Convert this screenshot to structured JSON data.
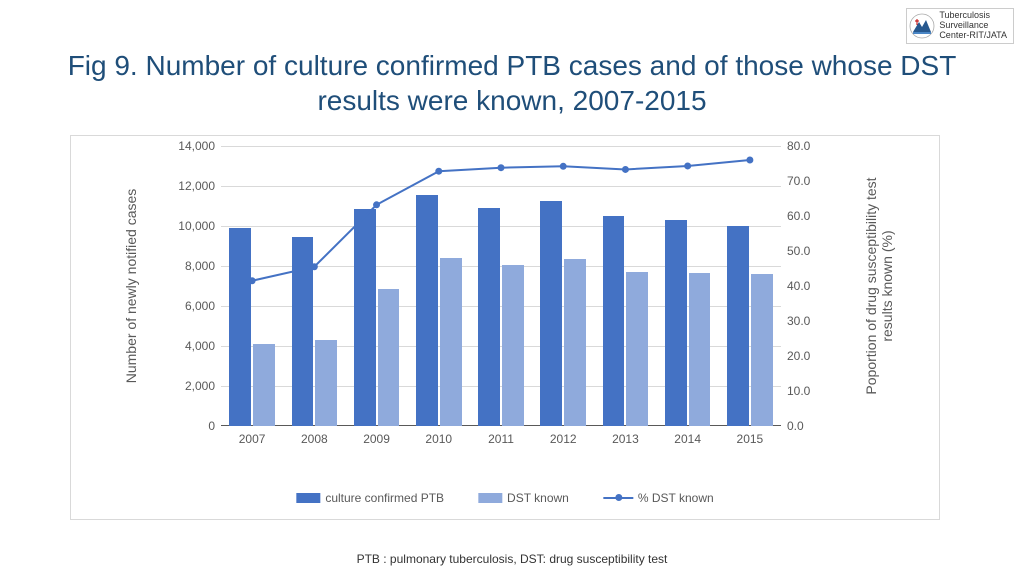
{
  "logo": {
    "line1": "Tuberculosis",
    "line2": "Surveillance",
    "line3": "Center-RIT/JATA"
  },
  "title": "Fig 9. Number of culture confirmed PTB cases and of those whose DST results were known, 2007-2015",
  "chart": {
    "type": "bar+line",
    "background_color": "#ffffff",
    "border_color": "#d9d9d9",
    "grid_color": "#d9d9d9",
    "categories": [
      "2007",
      "2008",
      "2009",
      "2010",
      "2011",
      "2012",
      "2013",
      "2014",
      "2015"
    ],
    "y_left": {
      "title": "Number of newly notified cases",
      "min": 0,
      "max": 14000,
      "step": 2000,
      "labels": [
        "0",
        "2,000",
        "4,000",
        "6,000",
        "8,000",
        "10,000",
        "12,000",
        "14,000"
      ],
      "fontsize": 12,
      "color": "#595959"
    },
    "y_right": {
      "title": "Poportion of drug susceptibility test\nresults known (%)",
      "min": 0,
      "max": 80,
      "step": 10,
      "labels": [
        "0.0",
        "10.0",
        "20.0",
        "30.0",
        "40.0",
        "50.0",
        "60.0",
        "70.0",
        "80.0"
      ],
      "fontsize": 12,
      "color": "#595959"
    },
    "series": {
      "culture_confirmed_ptb": {
        "label": "culture confirmed PTB",
        "values": [
          9900,
          9450,
          10850,
          11550,
          10900,
          11250,
          10500,
          10300,
          10000
        ],
        "color": "#4472c4",
        "bar_width": 0.35
      },
      "dst_known": {
        "label": "DST known",
        "values": [
          4100,
          4300,
          6850,
          8400,
          8050,
          8350,
          7700,
          7650,
          7600
        ],
        "color": "#8faadc",
        "bar_width": 0.35
      },
      "pct_dst_known": {
        "label": "% DST known",
        "values": [
          41.5,
          45.5,
          63.2,
          72.8,
          73.8,
          74.2,
          73.3,
          74.3,
          76.0
        ],
        "color": "#4472c4",
        "line_width": 2,
        "marker": "circle",
        "marker_size": 7
      }
    },
    "legend": [
      "culture confirmed PTB",
      "DST known",
      "% DST known"
    ],
    "label_fontsize": 12
  },
  "footnote": "PTB : pulmonary tuberculosis, DST: drug susceptibility test",
  "title_fontsize": 28,
  "title_color": "#1f4e79"
}
